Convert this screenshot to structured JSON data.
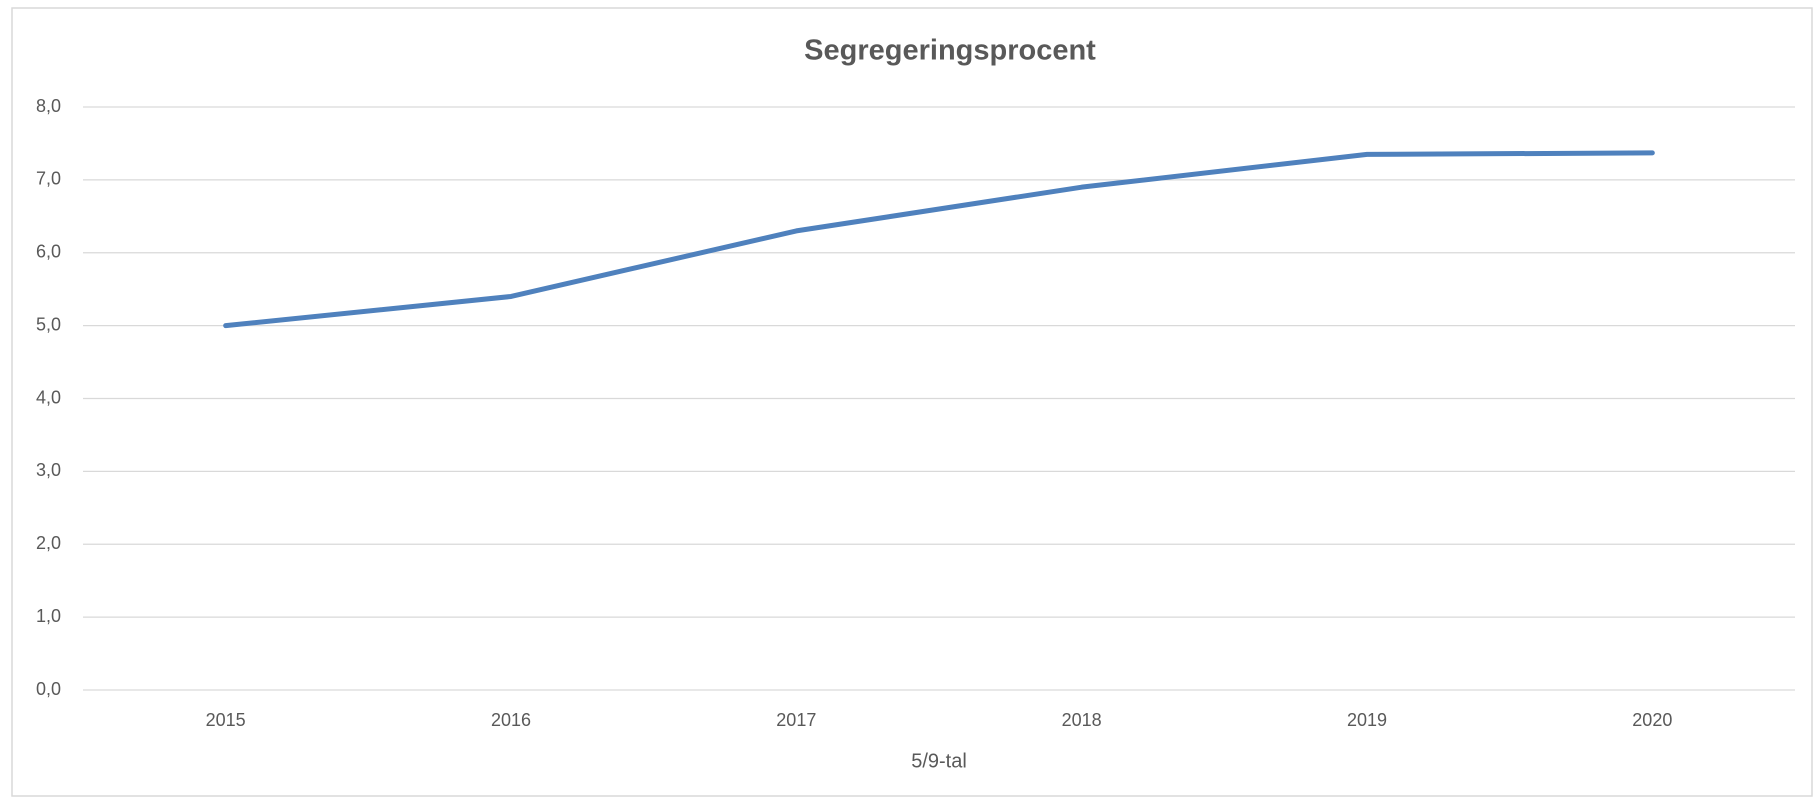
{
  "chart_data": {
    "type": "line",
    "title": "Segregeringsprocent",
    "x_label": "5/9-tal",
    "categories": [
      "2015",
      "2016",
      "2017",
      "2018",
      "2019",
      "2020"
    ],
    "values": [
      5.0,
      5.4,
      6.3,
      6.9,
      7.35,
      7.37
    ],
    "color": "#4f81bd",
    "ylim": [
      0,
      8
    ],
    "yticks": [
      {
        "value": 0,
        "label": "0,0"
      },
      {
        "value": 1,
        "label": "1,0"
      },
      {
        "value": 2,
        "label": "2,0"
      },
      {
        "value": 3,
        "label": "3,0"
      },
      {
        "value": 4,
        "label": "4,0"
      },
      {
        "value": 5,
        "label": "5,0"
      },
      {
        "value": 6,
        "label": "6,0"
      },
      {
        "value": 7,
        "label": "7,0"
      },
      {
        "value": 8,
        "label": "8,0"
      }
    ],
    "grid": true
  }
}
